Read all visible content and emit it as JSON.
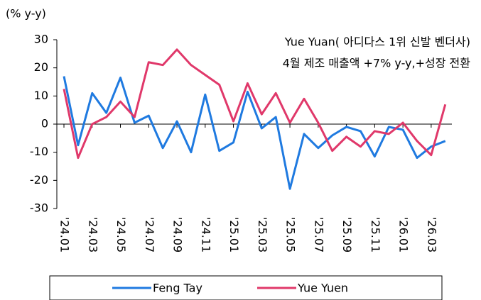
{
  "chart_data": {
    "type": "line",
    "y_label": "(% y-y)",
    "annotation": [
      "Yue Yuan( 아디다스 1위 신발 벤더사)",
      "4월 제조 매출액 +7% y-y,+성장 전환"
    ],
    "categories": [
      "'24.01",
      null,
      "'24.03",
      null,
      "'24.05",
      null,
      "'24.07",
      null,
      "'24.09",
      null,
      "'24.11",
      null,
      "'25.01",
      null,
      "'25.03",
      null,
      "'25.05",
      null,
      "'25.07",
      null,
      "'25.09",
      null,
      "'25.11",
      null,
      "'26.01",
      null,
      "'26.03",
      null
    ],
    "series": [
      {
        "name": "Feng Tay",
        "color": "#1f7ae0",
        "values": [
          17,
          -7.5,
          11,
          4,
          16.5,
          0.5,
          3,
          -8.5,
          1,
          -10,
          10.5,
          -9.5,
          -6.5,
          11.5,
          -1.5,
          2.5,
          -23,
          -3.5,
          -8.5,
          -4,
          -1,
          -2.5,
          -11.5,
          -1,
          -2,
          -12,
          -8,
          -6
        ]
      },
      {
        "name": "Yue Yuen",
        "color": "#e0386a",
        "values": [
          12.5,
          -12,
          0,
          2.5,
          8,
          2.5,
          22,
          21,
          26.5,
          21,
          17.5,
          14,
          1,
          14.5,
          3.5,
          11,
          0.5,
          9,
          0.5,
          -9.5,
          -4.5,
          -8,
          -2.5,
          -3.5,
          0.5,
          -6,
          -11,
          7
        ]
      }
    ],
    "ylim": [
      -30,
      30
    ],
    "yticks": [
      -30,
      -20,
      -10,
      0,
      10,
      20,
      30
    ],
    "legend": "bottom"
  }
}
